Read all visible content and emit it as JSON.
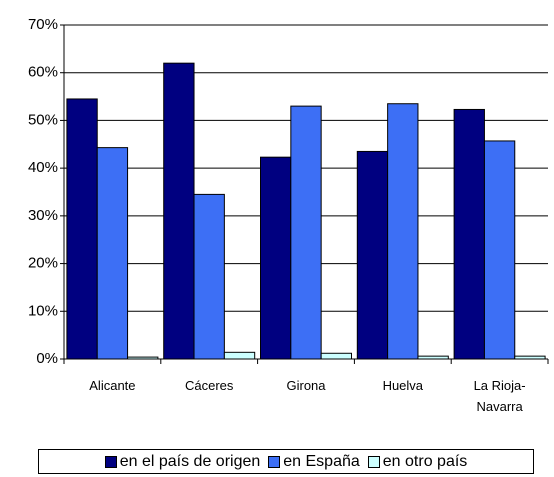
{
  "chart_data": {
    "type": "bar",
    "categories": [
      "Alicante",
      "Cáceres",
      "Girona",
      "Huelva",
      "La Rioja-Navarra"
    ],
    "series": [
      {
        "name": "en el país de origen",
        "color": "#000080",
        "values": [
          54.5,
          62,
          42.3,
          43.5,
          52.3
        ]
      },
      {
        "name": "en España",
        "color": "#3d6ff5",
        "values": [
          44.3,
          34.5,
          53,
          53.5,
          45.7
        ]
      },
      {
        "name": "en otro país",
        "color": "#ccffff",
        "values": [
          0.4,
          1.4,
          1.2,
          0.6,
          0.6
        ]
      }
    ],
    "ylim": [
      0,
      70
    ],
    "yticks": [
      {
        "value": 0,
        "label": "0%"
      },
      {
        "value": 10,
        "label": "10%"
      },
      {
        "value": 20,
        "label": "20%"
      },
      {
        "value": 30,
        "label": "30%"
      },
      {
        "value": 40,
        "label": "40%"
      },
      {
        "value": 50,
        "label": "50%"
      },
      {
        "value": 60,
        "label": "60%"
      },
      {
        "value": 70,
        "label": "70%"
      }
    ],
    "grid": true
  }
}
